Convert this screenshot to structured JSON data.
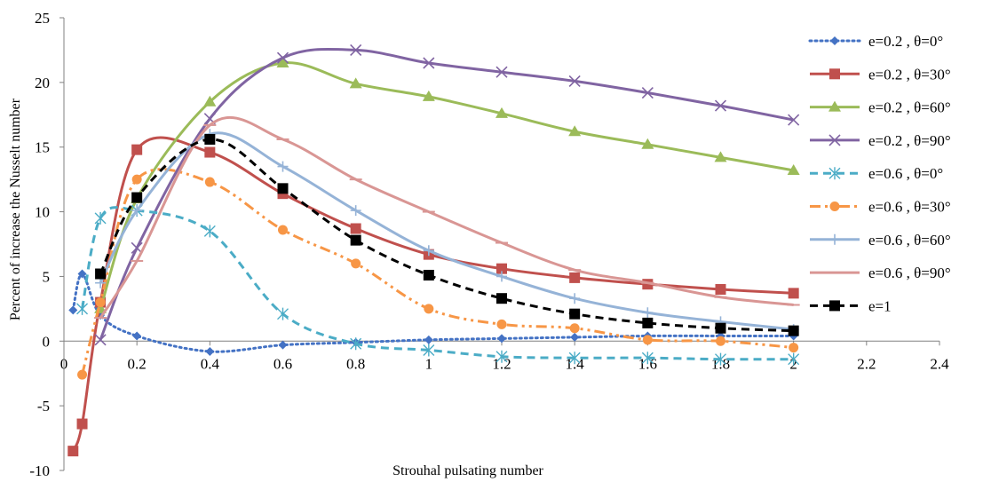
{
  "chart_data": {
    "type": "line",
    "title": "",
    "xlabel": "Strouhal pulsating number",
    "ylabel": "Percent of increase the Nusselt number",
    "xlim": [
      0,
      2.4
    ],
    "ylim": [
      -10,
      25
    ],
    "x_ticks": [
      0,
      0.2,
      0.4,
      0.6,
      0.8,
      1,
      1.2,
      1.4,
      1.6,
      1.8,
      2,
      2.2,
      2.4
    ],
    "x_tick_labels": [
      "0",
      "0.2",
      "0.4",
      "0.6",
      "0.8",
      "1",
      "1.2",
      "1.4",
      "1.6",
      "1.8",
      "2",
      "2.2",
      "2.4"
    ],
    "y_ticks": [
      -10,
      -5,
      0,
      5,
      10,
      15,
      20,
      25
    ],
    "y_tick_labels": [
      "-10",
      "-5",
      "0",
      "5",
      "10",
      "15",
      "20",
      "25"
    ],
    "grid": false,
    "legend_position": "right",
    "series": [
      {
        "name": "e=0.2 , θ=0°",
        "color": "#4472C4",
        "dash": "dotted",
        "marker": "diamond",
        "x": [
          0.025,
          0.05,
          0.1,
          0.2,
          0.4,
          0.6,
          0.8,
          1,
          1.2,
          1.4,
          1.6,
          1.8,
          2
        ],
        "y": [
          2.4,
          5.2,
          2.0,
          0.4,
          -0.8,
          -0.3,
          -0.1,
          0.1,
          0.2,
          0.3,
          0.4,
          0.4,
          0.4
        ]
      },
      {
        "name": "e=0.2 , θ=30°",
        "color": "#C0504D",
        "dash": "solid",
        "marker": "square",
        "x": [
          0.025,
          0.05,
          0.1,
          0.2,
          0.4,
          0.6,
          0.8,
          1,
          1.2,
          1.4,
          1.6,
          1.8,
          2
        ],
        "y": [
          -8.5,
          -6.4,
          3.0,
          14.8,
          14.6,
          11.4,
          8.7,
          6.7,
          5.6,
          4.9,
          4.4,
          4.0,
          3.7
        ]
      },
      {
        "name": "e=0.2 , θ=60°",
        "color": "#9BBB59",
        "dash": "solid",
        "marker": "triangle",
        "x": [
          0.1,
          0.2,
          0.4,
          0.6,
          0.8,
          1,
          1.2,
          1.4,
          1.6,
          1.8,
          2
        ],
        "y": [
          2.5,
          11.0,
          18.5,
          21.5,
          19.9,
          18.9,
          17.6,
          16.2,
          15.2,
          14.2,
          13.2
        ]
      },
      {
        "name": "e=0.2 , θ=90°",
        "color": "#8064A2",
        "dash": "solid",
        "marker": "x",
        "x": [
          0.1,
          0.2,
          0.4,
          0.6,
          0.8,
          1,
          1.2,
          1.4,
          1.6,
          1.8,
          2
        ],
        "y": [
          0.1,
          7.2,
          17.2,
          21.9,
          22.5,
          21.5,
          20.8,
          20.1,
          19.2,
          18.2,
          17.1
        ]
      },
      {
        "name": "e=0.6 , θ=0°",
        "color": "#4BACC6",
        "dash": "dashed",
        "marker": "star",
        "x": [
          0.05,
          0.1,
          0.2,
          0.4,
          0.6,
          0.8,
          1,
          1.2,
          1.4,
          1.6,
          1.8,
          2
        ],
        "y": [
          2.5,
          9.5,
          10.1,
          8.5,
          2.1,
          -0.2,
          -0.7,
          -1.2,
          -1.3,
          -1.3,
          -1.4,
          -1.4
        ]
      },
      {
        "name": "e=0.6 , θ=30°",
        "color": "#F79646",
        "dash": "dashdotdot",
        "marker": "circle",
        "x": [
          0.05,
          0.1,
          0.2,
          0.4,
          0.6,
          0.8,
          1,
          1.2,
          1.4,
          1.6,
          1.8,
          2
        ],
        "y": [
          -2.6,
          3.0,
          12.5,
          12.3,
          8.6,
          6.0,
          2.5,
          1.3,
          1.0,
          0.1,
          0.0,
          -0.5
        ]
      },
      {
        "name": "e=0.6 , θ=60°",
        "color": "#95B3D7",
        "dash": "solid",
        "marker": "plus",
        "x": [
          0.1,
          0.2,
          0.4,
          0.6,
          0.8,
          1,
          1.2,
          1.4,
          1.6,
          1.8,
          2
        ],
        "y": [
          4.5,
          10.1,
          16.0,
          13.5,
          10.1,
          7.0,
          5.0,
          3.3,
          2.2,
          1.5,
          0.9
        ]
      },
      {
        "name": "e=0.6 , θ=90°",
        "color": "#D99694",
        "dash": "solid",
        "marker": "dash",
        "x": [
          0.1,
          0.2,
          0.4,
          0.6,
          0.8,
          1,
          1.2,
          1.4,
          1.6,
          1.8,
          2
        ],
        "y": [
          1.8,
          6.2,
          16.7,
          15.6,
          12.5,
          10.0,
          7.6,
          5.5,
          4.5,
          3.4,
          2.8
        ]
      },
      {
        "name": "e=1",
        "color": "#000000",
        "dash": "dashed",
        "marker": "square",
        "x": [
          0.1,
          0.2,
          0.4,
          0.6,
          0.8,
          1,
          1.2,
          1.4,
          1.6,
          1.8,
          2
        ],
        "y": [
          5.2,
          11.1,
          15.6,
          11.8,
          7.8,
          5.1,
          3.3,
          2.1,
          1.4,
          1.0,
          0.8
        ]
      }
    ]
  }
}
